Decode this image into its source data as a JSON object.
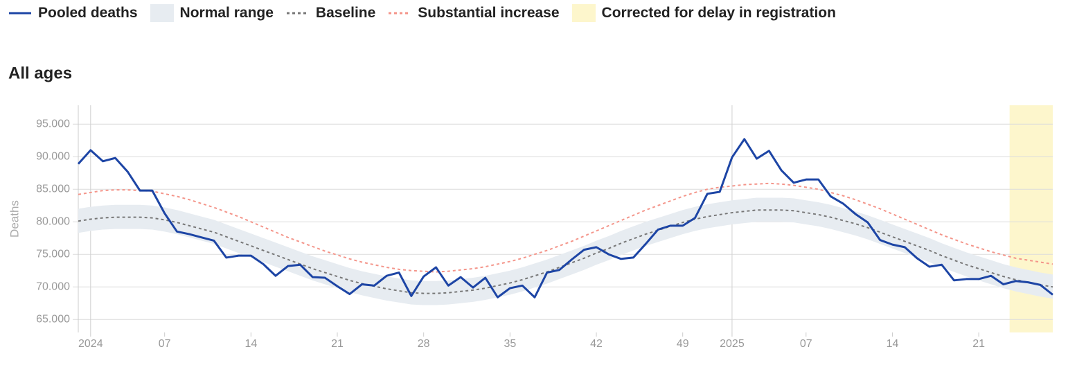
{
  "chart_data": {
    "type": "line",
    "title": "All ages",
    "y_label": "Deaths",
    "categories": [
      null,
      "2024",
      null,
      null,
      null,
      null,
      null,
      "07",
      null,
      null,
      null,
      null,
      null,
      null,
      "14",
      null,
      null,
      null,
      null,
      null,
      null,
      "21",
      null,
      null,
      null,
      null,
      null,
      null,
      "28",
      null,
      null,
      null,
      null,
      null,
      null,
      "35",
      null,
      null,
      null,
      null,
      null,
      null,
      "42",
      null,
      null,
      null,
      null,
      null,
      null,
      "49",
      null,
      null,
      null,
      "2025",
      null,
      null,
      null,
      null,
      null,
      "07",
      null,
      null,
      null,
      null,
      null,
      null,
      "14",
      null,
      null,
      null,
      null,
      null,
      null,
      "21",
      null,
      null,
      null,
      null,
      null,
      null
    ],
    "ylim": [
      63000,
      97900
    ],
    "yticks": [
      {
        "value": 65000,
        "label": "65.000"
      },
      {
        "value": 70000,
        "label": "70.000"
      },
      {
        "value": 75000,
        "label": "75.000"
      },
      {
        "value": 80000,
        "label": "80.000"
      },
      {
        "value": 85000,
        "label": "85.000"
      },
      {
        "value": 90000,
        "label": "90.000"
      },
      {
        "value": 95000,
        "label": "95.000"
      }
    ],
    "grid": true,
    "highlight": {
      "name": "Corrected for delay in registration",
      "color": "#fdf6cc",
      "start": 76,
      "end": 79
    },
    "band": {
      "name": "Normal range",
      "color": "#e7ecf1",
      "lower": [
        78300,
        78600,
        78800,
        78900,
        78900,
        78900,
        78800,
        78500,
        78100,
        77600,
        77100,
        76600,
        75900,
        75200,
        74500,
        73800,
        73100,
        72400,
        71700,
        71000,
        70400,
        69800,
        69200,
        68700,
        68300,
        67900,
        67600,
        67300,
        67200,
        67200,
        67300,
        67500,
        67700,
        68000,
        68400,
        68800,
        69300,
        69900,
        70500,
        71200,
        71900,
        72600,
        73400,
        74100,
        74900,
        75600,
        76300,
        76900,
        77500,
        78100,
        78600,
        79000,
        79300,
        79600,
        79800,
        80000,
        80000,
        80000,
        79900,
        79600,
        79300,
        78900,
        78400,
        77900,
        77300,
        76600,
        75900,
        75200,
        74500,
        73800,
        73000,
        72300,
        71600,
        71000,
        70400,
        69800,
        69300,
        68900,
        68500,
        68200
      ],
      "upper": [
        82000,
        82300,
        82500,
        82600,
        82600,
        82600,
        82500,
        82200,
        81800,
        81300,
        80800,
        80300,
        79600,
        78900,
        78200,
        77500,
        76800,
        76100,
        75400,
        74700,
        74100,
        73500,
        72900,
        72400,
        72000,
        71600,
        71300,
        71000,
        70900,
        70900,
        71000,
        71200,
        71400,
        71700,
        72100,
        72500,
        73000,
        73600,
        74200,
        74900,
        75600,
        76300,
        77100,
        77800,
        78600,
        79300,
        80000,
        80600,
        81200,
        81800,
        82300,
        82700,
        83000,
        83300,
        83500,
        83700,
        83700,
        83700,
        83600,
        83300,
        83000,
        82600,
        82100,
        81600,
        81000,
        80300,
        79600,
        78900,
        78200,
        77500,
        76700,
        76000,
        75300,
        74700,
        74100,
        73500,
        73000,
        72600,
        72200,
        71900
      ]
    },
    "series": [
      {
        "name": "Pooled deaths",
        "color": "#1d45a5",
        "dashed": false,
        "values": [
          88900,
          91000,
          89300,
          89800,
          87700,
          84800,
          84800,
          81300,
          78500,
          78100,
          77600,
          77100,
          74500,
          74800,
          74800,
          73500,
          71700,
          73200,
          73400,
          71500,
          71400,
          70100,
          68900,
          70400,
          70200,
          71700,
          72200,
          68600,
          71600,
          73000,
          70200,
          71500,
          69900,
          71400,
          68400,
          69800,
          70200,
          68400,
          72200,
          72600,
          74200,
          75700,
          76100,
          75000,
          74300,
          74500,
          76600,
          78800,
          79400,
          79400,
          80600,
          84300,
          84600,
          89900,
          92700,
          89700,
          90900,
          87900,
          86000,
          86500,
          86500,
          83900,
          82800,
          81200,
          79900,
          77200,
          76500,
          76100,
          74400,
          73100,
          73400,
          71000,
          71200,
          71200,
          71700,
          70400,
          70900,
          70700,
          70300,
          68800
        ]
      },
      {
        "name": "Baseline",
        "color": "#777777",
        "dashed": true,
        "values": [
          80100,
          80400,
          80600,
          80700,
          80700,
          80700,
          80600,
          80300,
          79900,
          79400,
          78900,
          78400,
          77700,
          77000,
          76300,
          75600,
          74900,
          74200,
          73500,
          72800,
          72200,
          71600,
          71000,
          70500,
          70100,
          69700,
          69400,
          69100,
          69000,
          69000,
          69100,
          69300,
          69500,
          69800,
          70200,
          70600,
          71100,
          71700,
          72300,
          73000,
          73700,
          74400,
          75200,
          75900,
          76700,
          77400,
          78100,
          78700,
          79300,
          79900,
          80400,
          80800,
          81100,
          81400,
          81600,
          81800,
          81800,
          81800,
          81700,
          81400,
          81100,
          80700,
          80200,
          79700,
          79100,
          78400,
          77700,
          77000,
          76300,
          75600,
          74800,
          74100,
          73400,
          72800,
          72200,
          71600,
          71100,
          70700,
          70300,
          70000
        ]
      },
      {
        "name": "Substantial increase",
        "color": "#f4958a",
        "dashed": true,
        "values": [
          84200,
          84500,
          84800,
          84900,
          84900,
          84800,
          84700,
          84300,
          83900,
          83400,
          82800,
          82200,
          81500,
          80800,
          80000,
          79200,
          78400,
          77600,
          76900,
          76200,
          75500,
          74900,
          74300,
          73800,
          73400,
          73000,
          72700,
          72500,
          72400,
          72300,
          72400,
          72600,
          72800,
          73100,
          73500,
          73900,
          74400,
          75000,
          75600,
          76300,
          77000,
          77800,
          78600,
          79400,
          80200,
          81000,
          81800,
          82500,
          83200,
          83900,
          84500,
          85000,
          85300,
          85500,
          85700,
          85800,
          85900,
          85800,
          85600,
          85300,
          85000,
          84500,
          84000,
          83400,
          82700,
          82000,
          81200,
          80400,
          79600,
          78800,
          78000,
          77300,
          76600,
          76000,
          75400,
          74900,
          74400,
          74100,
          73800,
          73500
        ]
      }
    ]
  }
}
